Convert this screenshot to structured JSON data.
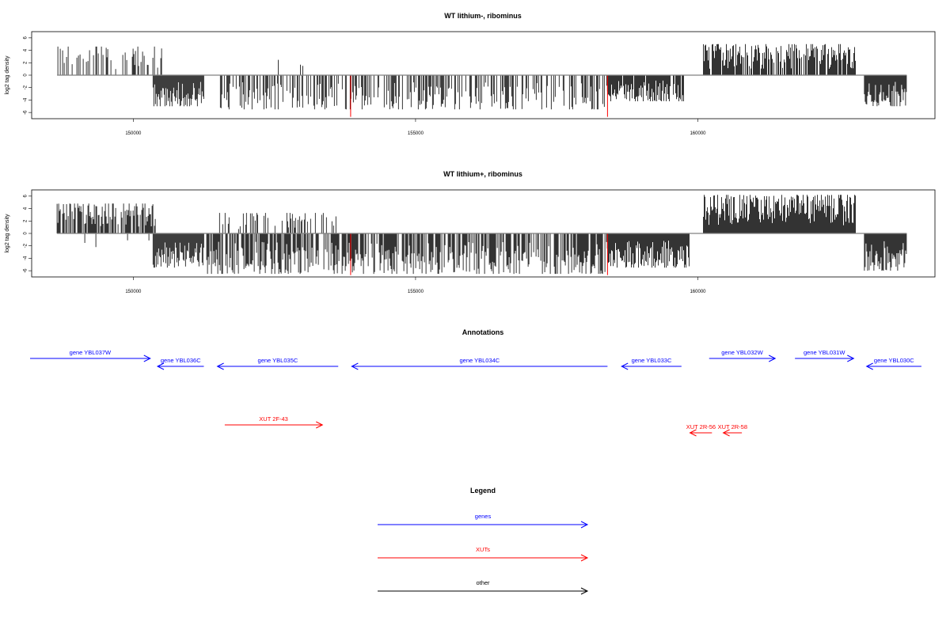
{
  "colors": {
    "genes": "#0000ff",
    "xuts": "#ff0000",
    "other": "#000000",
    "bars": "#000000",
    "marker": "#ff0000",
    "baseline": "#808080"
  },
  "chart_data": [
    {
      "type": "bar",
      "title": "WT lithium-, ribominus",
      "ylabel": "log2 tag density",
      "xlim": [
        148200,
        164200
      ],
      "ylim": [
        -7,
        7
      ],
      "yticks": [
        -6,
        -4,
        -2,
        0,
        2,
        4,
        6
      ],
      "xticks": [
        150000,
        155000,
        160000
      ],
      "xtick_labels": [
        "150000",
        "155000",
        "160000"
      ],
      "markers": [
        153850,
        158400
      ],
      "positive_regions": [
        {
          "from": 148650,
          "to": 150550,
          "max": 4.6,
          "density": 0.35
        },
        {
          "from": 152400,
          "to": 153200,
          "max": 3.2,
          "density": 0.08
        },
        {
          "from": 160100,
          "to": 162800,
          "max": 5.0,
          "density": 0.8
        }
      ],
      "negative_regions": [
        {
          "from": 150350,
          "to": 151250,
          "max": -5.0,
          "density": 1.0
        },
        {
          "from": 151500,
          "to": 158400,
          "max": -5.5,
          "density": 0.45
        },
        {
          "from": 158400,
          "to": 159750,
          "max": -4.2,
          "density": 0.9
        },
        {
          "from": 162950,
          "to": 163700,
          "max": -5.0,
          "density": 1.0
        }
      ]
    },
    {
      "type": "bar",
      "title": "WT lithium+, ribominus",
      "ylabel": "log2 tag density",
      "xlim": [
        148200,
        164200
      ],
      "ylim": [
        -7,
        7
      ],
      "yticks": [
        -6,
        -4,
        -2,
        0,
        2,
        4,
        6
      ],
      "xticks": [
        150000,
        155000,
        160000
      ],
      "xtick_labels": [
        "150000",
        "155000",
        "160000"
      ],
      "markers": [
        153850,
        158400
      ],
      "positive_regions": [
        {
          "from": 148650,
          "to": 150400,
          "max": 4.8,
          "density": 0.8
        },
        {
          "from": 151500,
          "to": 153600,
          "max": 3.3,
          "density": 0.3
        },
        {
          "from": 160100,
          "to": 162800,
          "max": 6.2,
          "density": 1.0
        }
      ],
      "negative_regions": [
        {
          "from": 148650,
          "to": 150350,
          "max": -2.2,
          "density": 0.05
        },
        {
          "from": 150350,
          "to": 151250,
          "max": -5.5,
          "density": 1.0
        },
        {
          "from": 151300,
          "to": 158400,
          "max": -6.5,
          "density": 0.7
        },
        {
          "from": 158400,
          "to": 159850,
          "max": -5.5,
          "density": 1.0
        },
        {
          "from": 162950,
          "to": 163700,
          "max": -6.0,
          "density": 1.0
        }
      ]
    }
  ],
  "annotations": {
    "title": "Annotations",
    "items": [
      {
        "label": "gene YBL037W",
        "start": 147950,
        "end": 150300,
        "strand": "+",
        "kind": "genes",
        "row": 0
      },
      {
        "label": "gene YBL036C",
        "start": 150430,
        "end": 151250,
        "strand": "-",
        "kind": "genes",
        "row": 1
      },
      {
        "label": "gene YBL035C",
        "start": 151490,
        "end": 153630,
        "strand": "-",
        "kind": "genes",
        "row": 1
      },
      {
        "label": "gene YBL034C",
        "start": 153870,
        "end": 158400,
        "strand": "-",
        "kind": "genes",
        "row": 1
      },
      {
        "label": "gene YBL033C",
        "start": 158650,
        "end": 159710,
        "strand": "-",
        "kind": "genes",
        "row": 1
      },
      {
        "label": "gene YBL032W",
        "start": 160200,
        "end": 161370,
        "strand": "+",
        "kind": "genes",
        "row": 0
      },
      {
        "label": "gene YBL031W",
        "start": 161720,
        "end": 162760,
        "strand": "+",
        "kind": "genes",
        "row": 0
      },
      {
        "label": "gene YBL030C",
        "start": 162990,
        "end": 163960,
        "strand": "-",
        "kind": "genes",
        "row": 1
      },
      {
        "label": "XUT 2F-43",
        "start": 151620,
        "end": 153350,
        "strand": "+",
        "kind": "xuts",
        "row": 2
      },
      {
        "label": "XUT 2R-56",
        "start": 159860,
        "end": 160250,
        "strand": "-",
        "kind": "xuts",
        "row": 3
      },
      {
        "label": "XUT 2R-58",
        "start": 160450,
        "end": 160780,
        "strand": "-",
        "kind": "xuts",
        "row": 3
      }
    ]
  },
  "legend": {
    "title": "Legend",
    "items": [
      {
        "label": "genes",
        "kind": "genes"
      },
      {
        "label": "XUTs",
        "kind": "xuts"
      },
      {
        "label": "other",
        "kind": "other"
      }
    ]
  }
}
